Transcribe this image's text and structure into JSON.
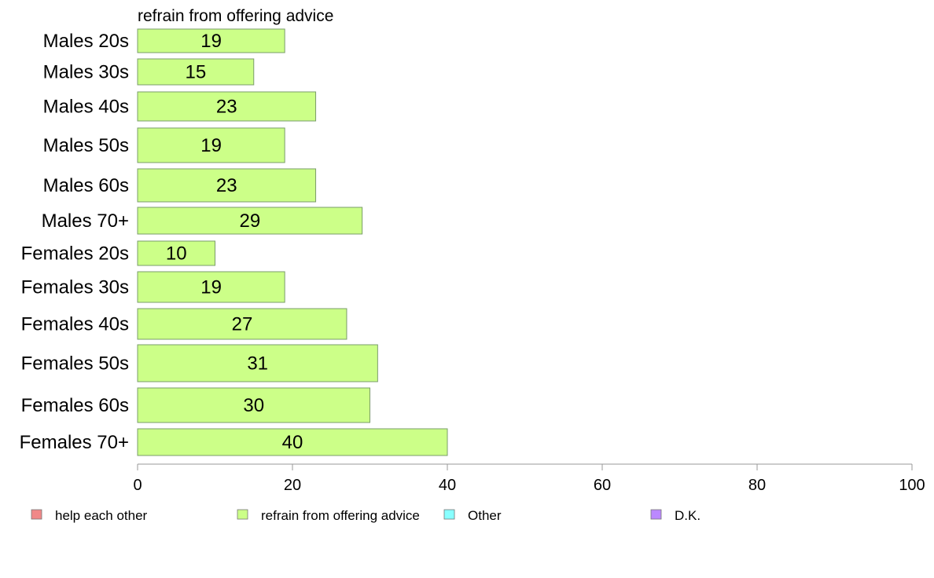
{
  "chart_data": {
    "type": "bar",
    "orientation": "horizontal",
    "title": "refrain from offering advice",
    "categories": [
      "Males 20s",
      "Males 30s",
      "Males 40s",
      "Males 50s",
      "Males 60s",
      "Males 70+",
      "Females 20s",
      "Females 30s",
      "Females 40s",
      "Females 50s",
      "Females 60s",
      "Females 70+"
    ],
    "series": [
      {
        "name": "refrain from offering advice",
        "color": "#ccff88",
        "values": [
          19,
          15,
          23,
          19,
          23,
          29,
          10,
          19,
          27,
          31,
          30,
          40
        ]
      }
    ],
    "xlim": [
      0,
      100
    ],
    "xticks": [
      "0",
      "20",
      "40",
      "60",
      "80",
      "100"
    ],
    "grid": false,
    "legend_position": "bottom",
    "legend": [
      {
        "label": "help each other",
        "color": "#f08888"
      },
      {
        "label": "refrain from offering advice",
        "color": "#ccff88"
      },
      {
        "label": "Other",
        "color": "#88ffff"
      },
      {
        "label": "D.K.",
        "color": "#bb88ff"
      }
    ]
  }
}
